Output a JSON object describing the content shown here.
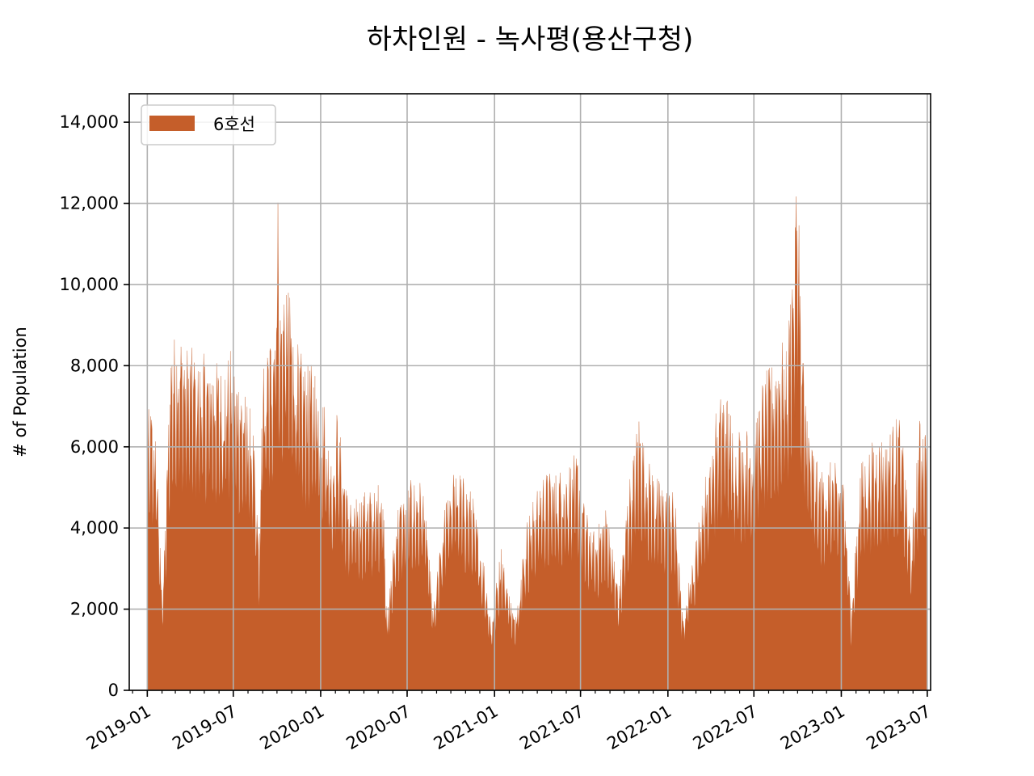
{
  "chart_data": {
    "type": "area",
    "title": "하차인원 - 녹사평(용산구청)",
    "ylabel": "# of Population",
    "xlabel": "",
    "ylim": [
      0,
      14700
    ],
    "xlim": [
      "2018-11-24",
      "2023-07-08"
    ],
    "grid": true,
    "legend_position": "upper-left",
    "y_ticks": [
      0,
      2000,
      4000,
      6000,
      8000,
      10000,
      12000,
      14000
    ],
    "y_tick_labels": [
      "0",
      "2,000",
      "4,000",
      "6,000",
      "8,000",
      "10,000",
      "12,000",
      "14,000"
    ],
    "x_ticks": [
      "2019-01-01",
      "2019-07-01",
      "2020-01-01",
      "2020-07-01",
      "2021-01-01",
      "2021-07-01",
      "2022-01-01",
      "2022-07-01",
      "2023-01-01",
      "2023-07-01"
    ],
    "x_tick_labels": [
      "2019-01",
      "2019-07",
      "2020-01",
      "2020-07",
      "2021-01",
      "2021-07",
      "2022-01",
      "2022-07",
      "2023-01",
      "2023-07"
    ],
    "series": [
      {
        "name": "6호선",
        "color": "#c55e2a",
        "date_range": [
          "2019-01-01",
          "2023-06-30"
        ],
        "points": [
          [
            "2019-01-01",
            6900
          ],
          [
            "2019-01-10",
            7000
          ],
          [
            "2019-01-20",
            6400
          ],
          [
            "2019-01-31",
            2600
          ],
          [
            "2019-02-05",
            3100
          ],
          [
            "2019-02-20",
            8700
          ],
          [
            "2019-03-10",
            8900
          ],
          [
            "2019-03-31",
            8500
          ],
          [
            "2019-04-20",
            8300
          ],
          [
            "2019-05-15",
            8300
          ],
          [
            "2019-06-05",
            8000
          ],
          [
            "2019-06-25",
            8400
          ],
          [
            "2019-07-20",
            7600
          ],
          [
            "2019-08-10",
            6800
          ],
          [
            "2019-08-25",
            3500
          ],
          [
            "2019-09-01",
            8100
          ],
          [
            "2019-09-15",
            8700
          ],
          [
            "2019-09-25",
            9500
          ],
          [
            "2019-10-03",
            12800
          ],
          [
            "2019-10-06",
            9500
          ],
          [
            "2019-10-20",
            10400
          ],
          [
            "2019-11-10",
            8700
          ],
          [
            "2019-12-01",
            8000
          ],
          [
            "2019-12-20",
            8100
          ],
          [
            "2020-01-10",
            7100
          ],
          [
            "2020-01-24",
            5800
          ],
          [
            "2020-02-05",
            7000
          ],
          [
            "2020-02-25",
            5000
          ],
          [
            "2020-03-10",
            4700
          ],
          [
            "2020-04-10",
            5000
          ],
          [
            "2020-04-25",
            4900
          ],
          [
            "2020-05-10",
            5500
          ],
          [
            "2020-05-20",
            1800
          ],
          [
            "2020-06-10",
            4600
          ],
          [
            "2020-07-10",
            5200
          ],
          [
            "2020-08-05",
            5200
          ],
          [
            "2020-08-25",
            2000
          ],
          [
            "2020-09-25",
            5300
          ],
          [
            "2020-10-10",
            5600
          ],
          [
            "2020-11-15",
            4900
          ],
          [
            "2020-12-10",
            3200
          ],
          [
            "2020-12-25",
            1700
          ],
          [
            "2021-01-15",
            3600
          ],
          [
            "2021-02-12",
            1800
          ],
          [
            "2021-03-10",
            4200
          ],
          [
            "2021-04-10",
            5400
          ],
          [
            "2021-05-10",
            5400
          ],
          [
            "2021-06-10",
            5700
          ],
          [
            "2021-06-25",
            5900
          ],
          [
            "2021-07-10",
            4500
          ],
          [
            "2021-08-01",
            3900
          ],
          [
            "2021-08-25",
            4600
          ],
          [
            "2021-09-20",
            2500
          ],
          [
            "2021-10-10",
            5100
          ],
          [
            "2021-11-01",
            6900
          ],
          [
            "2021-11-20",
            5700
          ],
          [
            "2021-12-20",
            5100
          ],
          [
            "2022-01-15",
            4900
          ],
          [
            "2022-02-01",
            1800
          ],
          [
            "2022-03-10",
            4600
          ],
          [
            "2022-04-10",
            6800
          ],
          [
            "2022-04-30",
            7600
          ],
          [
            "2022-05-20",
            6600
          ],
          [
            "2022-06-10",
            6500
          ],
          [
            "2022-06-30",
            6500
          ],
          [
            "2022-07-20",
            7800
          ],
          [
            "2022-08-10",
            8100
          ],
          [
            "2022-08-25",
            8600
          ],
          [
            "2022-09-10",
            8800
          ],
          [
            "2022-09-25",
            11800
          ],
          [
            "2022-10-02",
            13800
          ],
          [
            "2022-10-08",
            9000
          ],
          [
            "2022-10-25",
            6700
          ],
          [
            "2022-11-15",
            5400
          ],
          [
            "2022-12-15",
            5700
          ],
          [
            "2023-01-10",
            5100
          ],
          [
            "2023-01-22",
            1800
          ],
          [
            "2023-02-10",
            5600
          ],
          [
            "2023-03-10",
            6200
          ],
          [
            "2023-04-10",
            6400
          ],
          [
            "2023-05-05",
            6900
          ],
          [
            "2023-05-28",
            3700
          ],
          [
            "2023-06-15",
            6700
          ],
          [
            "2023-06-30",
            6600
          ]
        ]
      }
    ]
  }
}
